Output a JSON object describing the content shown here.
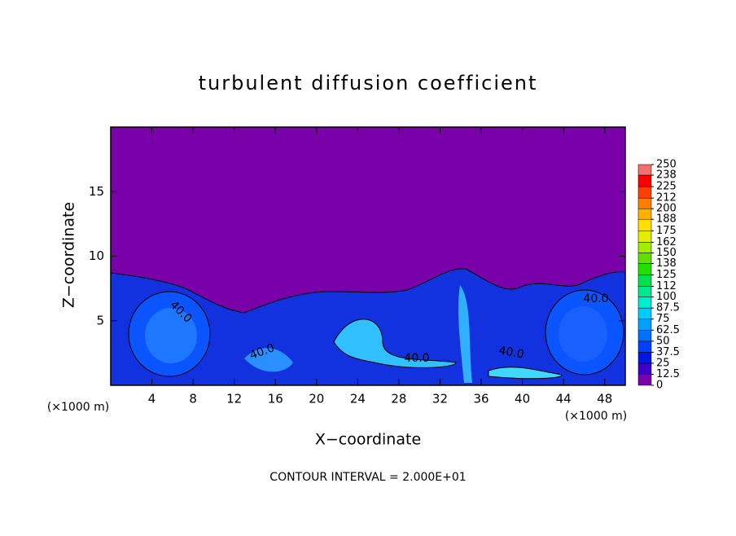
{
  "chart_data": {
    "type": "contour",
    "title": "turbulent diffusion coefficient",
    "x_label": "X−coordinate",
    "y_label": "Z−coordinate",
    "y_unit": "(×1000 m)",
    "x_unit": "(×1000 m)",
    "footer": "CONTOUR INTERVAL = 2.000E+01",
    "xlim": [
      0,
      50
    ],
    "xticks": [
      4,
      8,
      12,
      16,
      20,
      24,
      28,
      32,
      36,
      40,
      44,
      48
    ],
    "ylim": [
      0,
      20
    ],
    "yticks": [
      5,
      10,
      15
    ],
    "contour_labels": [
      "40.0",
      "40.0",
      "40.0",
      "40.0",
      "40.0"
    ],
    "colorbar": {
      "ticks": [
        0,
        12.5,
        25,
        37.5,
        50,
        62.5,
        75,
        87.5,
        100,
        112,
        125,
        138,
        150,
        162,
        175,
        188,
        200,
        212,
        225,
        238,
        250
      ],
      "colors": [
        "#7a00aa",
        "#3c00c8",
        "#0018e0",
        "#0040ff",
        "#0070ff",
        "#00a0ff",
        "#00ccff",
        "#00eed0",
        "#00e890",
        "#00e050",
        "#20e000",
        "#60e000",
        "#a0ee00",
        "#e0f000",
        "#ffe000",
        "#ffb000",
        "#ff8000",
        "#ff4000",
        "#ff0000",
        "#f07070"
      ]
    }
  }
}
